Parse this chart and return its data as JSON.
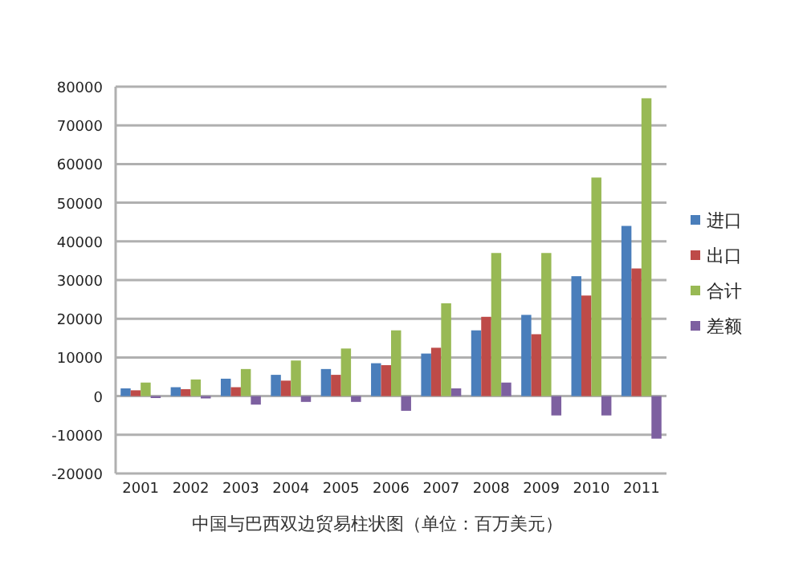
{
  "chart_data": {
    "type": "bar",
    "title": "中国与巴西双边贸易柱状图（单位：百万美元）",
    "categories": [
      "2001",
      "2002",
      "2003",
      "2004",
      "2005",
      "2006",
      "2007",
      "2008",
      "2009",
      "2010",
      "2011"
    ],
    "series": [
      {
        "name": "进口",
        "color": "#4a7ebb",
        "values": [
          2000,
          2300,
          4500,
          5500,
          7000,
          8500,
          11000,
          17000,
          21000,
          31000,
          44000
        ]
      },
      {
        "name": "出口",
        "color": "#be4b48",
        "values": [
          1500,
          1800,
          2300,
          4000,
          5500,
          8000,
          12500,
          20500,
          16000,
          26000,
          33000
        ]
      },
      {
        "name": "合计",
        "color": "#98b954",
        "values": [
          3500,
          4300,
          7000,
          9200,
          12300,
          17000,
          24000,
          37000,
          37000,
          56500,
          77000
        ]
      },
      {
        "name": "差额",
        "color": "#7d60a0",
        "values": [
          -500,
          -600,
          -2200,
          -1500,
          -1500,
          -3800,
          2000,
          3500,
          -5000,
          -5000,
          -11000
        ]
      }
    ],
    "ylim": [
      -20000,
      80000
    ],
    "yticks": [
      -20000,
      -10000,
      0,
      10000,
      20000,
      30000,
      40000,
      50000,
      60000,
      70000,
      80000
    ],
    "grid": "y",
    "legend": "right"
  }
}
